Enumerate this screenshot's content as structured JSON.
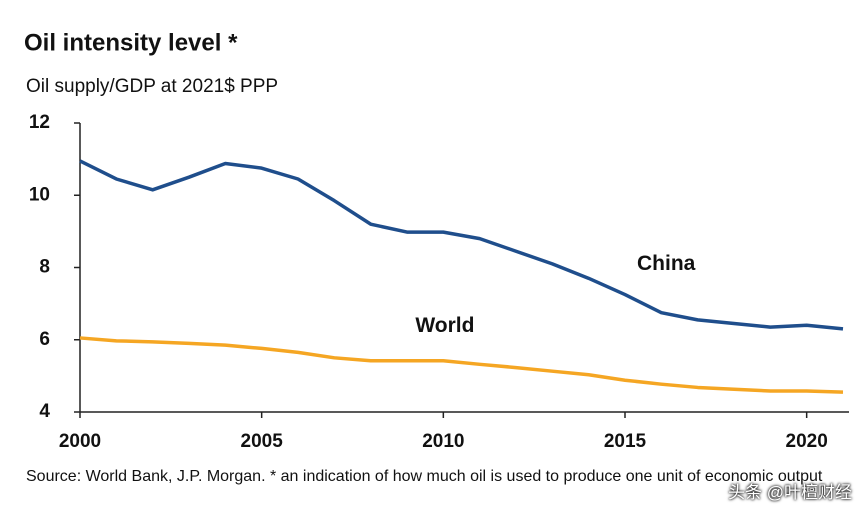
{
  "chart_data": {
    "type": "line",
    "title": "Oil intensity level *",
    "subtitle": "Oil supply/GDP at 2021$ PPP",
    "x": [
      2000,
      2001,
      2002,
      2003,
      2004,
      2005,
      2006,
      2007,
      2008,
      2009,
      2010,
      2011,
      2012,
      2013,
      2014,
      2015,
      2016,
      2017,
      2018,
      2019,
      2020,
      2021
    ],
    "series": [
      {
        "name": "China",
        "color": "#1f4e8c",
        "values": [
          10.95,
          10.45,
          10.15,
          10.5,
          10.88,
          10.75,
          10.45,
          9.85,
          9.2,
          8.98,
          8.98,
          8.8,
          8.45,
          8.1,
          7.7,
          7.25,
          6.75,
          6.55,
          6.45,
          6.35,
          6.4,
          6.3
        ]
      },
      {
        "name": "World",
        "color": "#f5a623",
        "values": [
          6.05,
          5.97,
          5.94,
          5.9,
          5.85,
          5.76,
          5.65,
          5.5,
          5.42,
          5.42,
          5.42,
          5.32,
          5.23,
          5.13,
          5.03,
          4.88,
          4.77,
          4.68,
          4.63,
          4.58,
          4.58,
          4.55
        ]
      }
    ],
    "xlim": [
      2000,
      2021
    ],
    "xticks": [
      2000,
      2005,
      2010,
      2015,
      2020
    ],
    "ylim": [
      4,
      12
    ],
    "yticks": [
      4,
      6,
      8,
      10,
      12
    ],
    "source": "Source: World Bank, J.P. Morgan. * an indication of how much oil is used to produce one unit of economic output",
    "watermark": "头条 @叶檀财经"
  }
}
